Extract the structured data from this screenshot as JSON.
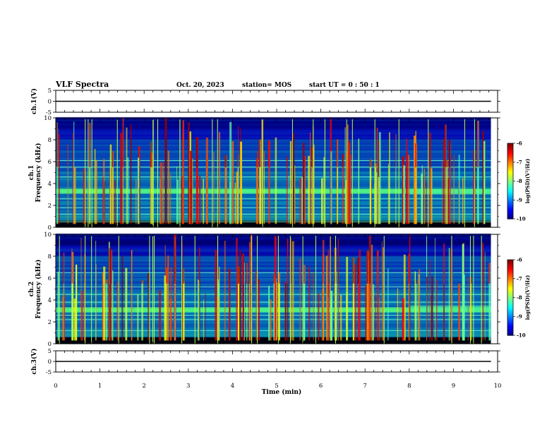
{
  "header": {
    "title": "VLF Spectra",
    "date": "Oct. 20, 2023",
    "station": "station= MOS",
    "start": "start  UT =   0 : 50 : 1"
  },
  "chart_data": [
    {
      "id": "ch1-waveform",
      "type": "line",
      "ylabel": "ch.1(V)",
      "ylim": [
        -5,
        5
      ],
      "yticks": [
        "5",
        "0",
        "-5"
      ],
      "xlim": [
        0,
        10
      ],
      "values": [
        [
          0,
          0
        ],
        [
          9.85,
          0
        ]
      ]
    },
    {
      "id": "ch1-spectrogram",
      "type": "heatmap",
      "ylabel_top": "ch.1",
      "ylabel": "Frequency (kHz)",
      "ylim": [
        0,
        10
      ],
      "yticks": [
        "0",
        "2",
        "4",
        "6",
        "8",
        "10"
      ],
      "xlim": [
        0,
        10
      ],
      "colorbar": {
        "label": "log(PSD)(V²/Hz)",
        "range": [
          -10,
          -6
        ],
        "ticks": [
          "-6",
          "-7",
          "-8",
          "-9",
          "-10"
        ]
      },
      "data_end_min": 9.85,
      "bands_khz": [
        0.5,
        1.2,
        1.8,
        2.6,
        3.2,
        3.4,
        4.6,
        5.5,
        6.1
      ]
    },
    {
      "id": "ch2-spectrogram",
      "type": "heatmap",
      "ylabel_top": "ch.2",
      "ylabel": "Frequency (kHz)",
      "ylim": [
        0,
        10
      ],
      "yticks": [
        "0",
        "2",
        "4",
        "6",
        "8",
        "10"
      ],
      "xlim": [
        0,
        10
      ],
      "colorbar": {
        "label": "log(PSD)(V²/Hz)",
        "range": [
          -10,
          -6
        ],
        "ticks": [
          "-6",
          "-7",
          "-8",
          "-9",
          "-10"
        ]
      },
      "data_end_min": 9.85,
      "bands_khz": [
        1.2,
        2.2,
        2.6,
        3.0,
        3.2,
        3.8,
        4.5,
        5.2,
        6.5
      ]
    },
    {
      "id": "ch3-waveform",
      "type": "line",
      "ylabel": "ch.3(V)",
      "ylim": [
        -5,
        5
      ],
      "yticks": [
        "5",
        "0",
        "-5"
      ],
      "xlim": [
        0,
        10
      ],
      "values": [
        [
          0,
          0
        ],
        [
          9.85,
          0
        ]
      ]
    }
  ],
  "xaxis": {
    "label": "Time (min)",
    "ticks": [
      "0",
      "1",
      "2",
      "3",
      "4",
      "5",
      "6",
      "7",
      "8",
      "9",
      "10"
    ]
  }
}
